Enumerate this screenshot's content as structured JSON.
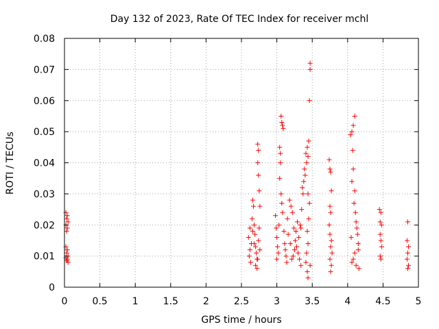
{
  "chart_data": {
    "type": "scatter",
    "title": "Day 132 of 2023, Rate Of TEC Index for receiver mchl",
    "xlabel": "GPS time / hours",
    "ylabel": "ROTI / TECUs",
    "xlim": [
      0,
      5
    ],
    "ylim": [
      0,
      0.08
    ],
    "grid": true,
    "x_ticks": [
      0,
      0.5,
      1,
      1.5,
      2,
      2.5,
      3,
      3.5,
      4,
      4.5,
      5
    ],
    "x_tick_labels": [
      "0",
      "0.5",
      "1",
      "1.5",
      "2",
      "2.5",
      "3",
      "3.5",
      "4",
      "4.5",
      "5"
    ],
    "y_ticks": [
      0,
      0.01,
      0.02,
      0.03,
      0.04,
      0.05,
      0.06,
      0.07,
      0.08
    ],
    "y_tick_labels": [
      "0",
      "0.01",
      "0.02",
      "0.03",
      "0.04",
      "0.05",
      "0.06",
      "0.07",
      "0.08"
    ],
    "marker": "plus",
    "color": "#ff0000",
    "series": [
      {
        "name": "ROTI",
        "points": [
          [
            0.02,
            0.024
          ],
          [
            0.04,
            0.023
          ],
          [
            0.03,
            0.022
          ],
          [
            0.05,
            0.021
          ],
          [
            0.02,
            0.02
          ],
          [
            0.04,
            0.019
          ],
          [
            0.03,
            0.018
          ],
          [
            0.02,
            0.013
          ],
          [
            0.04,
            0.012
          ],
          [
            0.03,
            0.011
          ],
          [
            0.05,
            0.01
          ],
          [
            0.02,
            0.0095
          ],
          [
            0.04,
            0.009
          ],
          [
            0.03,
            0.0085
          ],
          [
            0.05,
            0.008
          ],
          [
            2.6,
            0.016
          ],
          [
            2.62,
            0.012
          ],
          [
            2.61,
            0.01
          ],
          [
            2.63,
            0.008
          ],
          [
            2.64,
            0.014
          ],
          [
            2.65,
            0.022
          ],
          [
            2.66,
            0.028
          ],
          [
            2.67,
            0.026
          ],
          [
            2.68,
            0.02
          ],
          [
            2.69,
            0.017
          ],
          [
            2.7,
            0.013
          ],
          [
            2.71,
            0.011
          ],
          [
            2.72,
            0.009
          ],
          [
            2.7,
            0.007
          ],
          [
            2.73,
            0.046
          ],
          [
            2.74,
            0.044
          ],
          [
            2.73,
            0.04
          ],
          [
            2.74,
            0.036
          ],
          [
            2.75,
            0.031
          ],
          [
            2.76,
            0.026
          ],
          [
            2.75,
            0.019
          ],
          [
            2.74,
            0.015
          ],
          [
            2.76,
            0.012
          ],
          [
            2.73,
            0.009
          ],
          [
            2.72,
            0.006
          ],
          [
            2.66,
            0.018
          ],
          [
            2.68,
            0.014
          ],
          [
            2.62,
            0.019
          ],
          [
            2.98,
            0.023
          ],
          [
            2.99,
            0.019
          ],
          [
            3.0,
            0.016
          ],
          [
            3.01,
            0.013
          ],
          [
            3.02,
            0.011
          ],
          [
            3.0,
            0.009
          ],
          [
            3.03,
            0.02
          ],
          [
            3.04,
            0.045
          ],
          [
            3.05,
            0.043
          ],
          [
            3.05,
            0.04
          ],
          [
            3.04,
            0.035
          ],
          [
            3.06,
            0.03
          ],
          [
            3.07,
            0.027
          ],
          [
            3.08,
            0.024
          ],
          [
            3.06,
            0.055
          ],
          [
            3.07,
            0.053
          ],
          [
            3.08,
            0.052
          ],
          [
            3.09,
            0.051
          ],
          [
            3.1,
            0.018
          ],
          [
            3.11,
            0.014
          ],
          [
            3.12,
            0.012
          ],
          [
            3.13,
            0.01
          ],
          [
            3.14,
            0.008
          ],
          [
            3.15,
            0.022
          ],
          [
            3.16,
            0.017
          ],
          [
            3.18,
            0.028
          ],
          [
            3.2,
            0.026
          ],
          [
            3.22,
            0.024
          ],
          [
            3.24,
            0.019
          ],
          [
            3.26,
            0.015
          ],
          [
            3.28,
            0.013
          ],
          [
            3.3,
            0.011
          ],
          [
            3.32,
            0.009
          ],
          [
            3.34,
            0.007
          ],
          [
            3.36,
            0.032
          ],
          [
            3.38,
            0.034
          ],
          [
            3.4,
            0.036
          ],
          [
            3.42,
            0.04
          ],
          [
            3.44,
            0.042
          ],
          [
            3.45,
            0.047
          ],
          [
            3.43,
            0.045
          ],
          [
            3.41,
            0.043
          ],
          [
            3.39,
            0.038
          ],
          [
            3.37,
            0.03
          ],
          [
            3.35,
            0.025
          ],
          [
            3.33,
            0.02
          ],
          [
            3.31,
            0.016
          ],
          [
            3.29,
            0.021
          ],
          [
            3.27,
            0.018
          ],
          [
            3.25,
            0.012
          ],
          [
            3.23,
            0.01
          ],
          [
            3.21,
            0.009
          ],
          [
            3.19,
            0.014
          ],
          [
            3.44,
            0.03
          ],
          [
            3.46,
            0.027
          ],
          [
            3.45,
            0.022
          ],
          [
            3.43,
            0.018
          ],
          [
            3.44,
            0.014
          ],
          [
            3.42,
            0.011
          ],
          [
            3.41,
            0.008
          ],
          [
            3.43,
            0.005
          ],
          [
            3.44,
            0.003
          ],
          [
            3.47,
            0.007
          ],
          [
            3.46,
            0.06
          ],
          [
            3.47,
            0.072
          ],
          [
            3.47,
            0.07
          ],
          [
            3.34,
            0.019
          ],
          [
            3.74,
            0.041
          ],
          [
            3.75,
            0.038
          ],
          [
            3.76,
            0.037
          ],
          [
            3.77,
            0.031
          ],
          [
            3.75,
            0.026
          ],
          [
            3.76,
            0.024
          ],
          [
            3.74,
            0.02
          ],
          [
            3.75,
            0.017
          ],
          [
            3.77,
            0.015
          ],
          [
            3.76,
            0.013
          ],
          [
            3.78,
            0.011
          ],
          [
            3.75,
            0.009
          ],
          [
            3.77,
            0.007
          ],
          [
            3.76,
            0.005
          ],
          [
            4.04,
            0.049
          ],
          [
            4.06,
            0.05
          ],
          [
            4.08,
            0.052
          ],
          [
            4.1,
            0.055
          ],
          [
            4.07,
            0.044
          ],
          [
            4.08,
            0.038
          ],
          [
            4.06,
            0.034
          ],
          [
            4.1,
            0.031
          ],
          [
            4.09,
            0.027
          ],
          [
            4.11,
            0.024
          ],
          [
            4.12,
            0.021
          ],
          [
            4.13,
            0.019
          ],
          [
            4.14,
            0.017
          ],
          [
            4.15,
            0.014
          ],
          [
            4.1,
            0.011
          ],
          [
            4.08,
            0.009
          ],
          [
            4.06,
            0.008
          ],
          [
            4.12,
            0.007
          ],
          [
            4.16,
            0.006
          ],
          [
            4.15,
            0.012
          ],
          [
            4.05,
            0.016
          ],
          [
            4.45,
            0.025
          ],
          [
            4.47,
            0.024
          ],
          [
            4.46,
            0.021
          ],
          [
            4.48,
            0.02
          ],
          [
            4.46,
            0.017
          ],
          [
            4.47,
            0.015
          ],
          [
            4.48,
            0.013
          ],
          [
            4.46,
            0.01
          ],
          [
            4.47,
            0.009
          ],
          [
            4.85,
            0.021
          ],
          [
            4.84,
            0.015
          ],
          [
            4.86,
            0.013
          ],
          [
            4.85,
            0.011
          ],
          [
            4.84,
            0.009
          ],
          [
            4.86,
            0.007
          ],
          [
            4.85,
            0.006
          ]
        ]
      }
    ]
  }
}
